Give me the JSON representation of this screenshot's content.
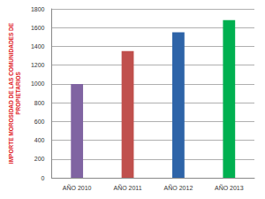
{
  "chart_data": {
    "type": "bar",
    "ylabel": "IMPORTE MOROSIDAD DE LAS COMUNIDADES DE\nPROPIETARIOS",
    "categories": [
      "AÑO 2010",
      "AÑO 2011",
      "AÑO 2012",
      "AÑO 2013"
    ],
    "values": [
      1000,
      1350,
      1550,
      1680
    ],
    "colors": [
      "#8064a2",
      "#c0504d",
      "#2e64a8",
      "#00b050"
    ],
    "ylim": [
      0,
      1800
    ],
    "yticks": [
      0,
      200,
      400,
      600,
      800,
      1000,
      1200,
      1400,
      1600,
      1800
    ],
    "grid": true
  }
}
